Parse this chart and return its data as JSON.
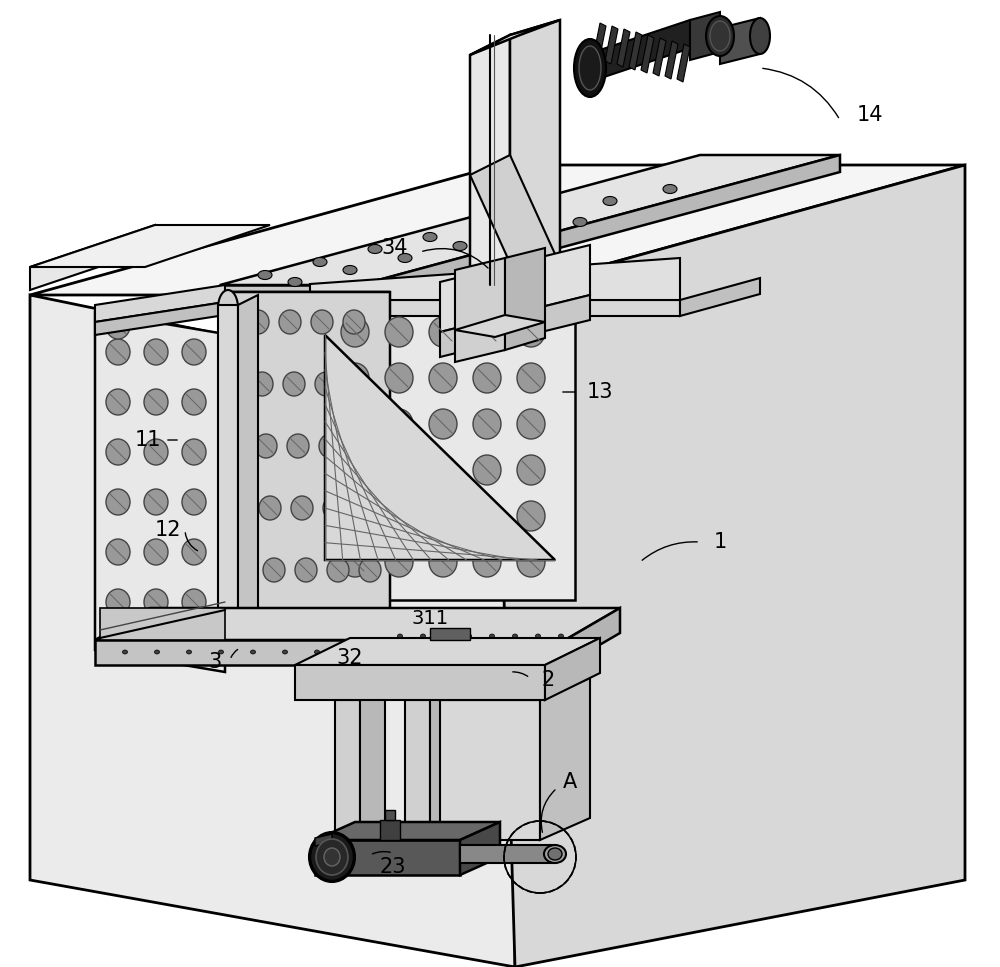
{
  "background_color": "#ffffff",
  "figsize": [
    10.0,
    9.67
  ],
  "dpi": 100,
  "lw_main": 1.8,
  "lw_thin": 1.0,
  "fc_light": "#f0f0f0",
  "fc_mid": "#e0e0e0",
  "fc_dark": "#c8c8c8",
  "fc_darker": "#b0b0b0",
  "fc_hole": "#888888",
  "fc_black": "#1a1a1a",
  "fc_metal": "#505050"
}
